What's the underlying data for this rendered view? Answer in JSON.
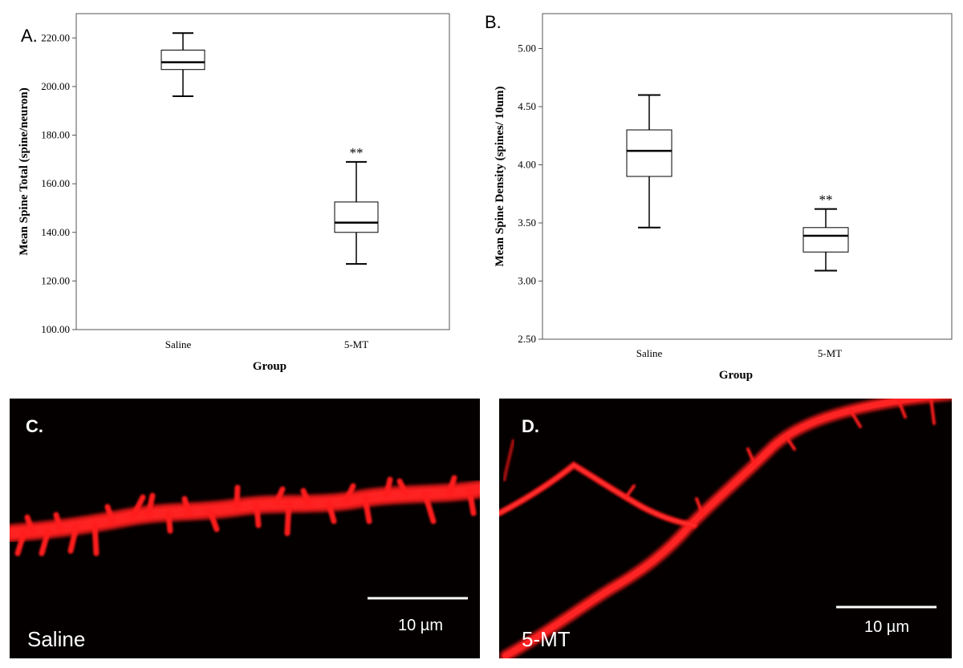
{
  "chart_data": [
    {
      "type": "boxplot",
      "panel": "A.",
      "ylabel": "Mean Spine Total (spine/neuron)",
      "xlabel": "Group",
      "ylim": [
        100,
        230
      ],
      "yticks": [
        "100.00",
        "120.00",
        "140.00",
        "160.00",
        "180.00",
        "200.00",
        "220.00"
      ],
      "tick_values": [
        100,
        120,
        140,
        160,
        180,
        200,
        220
      ],
      "categories": [
        "Saline",
        "5-MT"
      ],
      "boxes": [
        {
          "name": "Saline",
          "min": 196,
          "q1": 207,
          "median": 210,
          "q3": 215,
          "max": 222,
          "annotation": ""
        },
        {
          "name": "5-MT",
          "min": 127,
          "q1": 140,
          "median": 144,
          "q3": 152.5,
          "max": 169,
          "annotation": "**"
        }
      ]
    },
    {
      "type": "boxplot",
      "panel": "B.",
      "ylabel": "Mean Spine Density (spines/ 10um)",
      "xlabel": "Group",
      "ylim": [
        2.5,
        5.3
      ],
      "yticks": [
        "2.50",
        "3.00",
        "3.50",
        "4.00",
        "4.50",
        "5.00"
      ],
      "tick_values": [
        2.5,
        3.0,
        3.5,
        4.0,
        4.5,
        5.0
      ],
      "categories": [
        "Saline",
        "5-MT"
      ],
      "boxes": [
        {
          "name": "Saline",
          "min": 3.46,
          "q1": 3.9,
          "median": 4.12,
          "q3": 4.3,
          "max": 4.6,
          "annotation": ""
        },
        {
          "name": "5-MT",
          "min": 3.09,
          "q1": 3.25,
          "median": 3.39,
          "q3": 3.46,
          "max": 3.62,
          "annotation": "**"
        }
      ]
    }
  ],
  "micrographs": [
    {
      "panel": "C.",
      "condition": "Saline",
      "scale_bar": "10 µm",
      "image": "red-fluorescent-dendrite-segment-with-dense-spines"
    },
    {
      "panel": "D.",
      "condition": "5-MT",
      "scale_bar": "10 µm",
      "image": "red-fluorescent-branching-dendrites-with-sparse-spines"
    }
  ],
  "colors": {
    "micro_bg": "#050000",
    "dendrite": "#ff1a1a",
    "frame": "#555555"
  }
}
